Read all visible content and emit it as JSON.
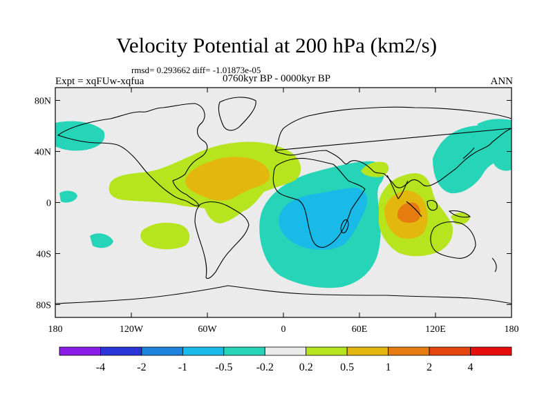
{
  "title": "Velocity Potential at 200 hPa (km2/s)",
  "stats": "rmsd= 0.293662 diff= -1.01873e-05",
  "left_label": "Expt = xqFUw-xqfua",
  "center_label": "0760kyr BP - 0000kyr BP",
  "right_label": "ANN",
  "map": {
    "projection": "cylindrical-equidistant",
    "lon_range": [
      -180,
      180
    ],
    "lat_range": [
      -90,
      90
    ],
    "lat_ticks": [
      "80N",
      "40N",
      "0",
      "40S",
      "80S"
    ],
    "lon_ticks": [
      "180",
      "120W",
      "60W",
      "0",
      "60E",
      "120E",
      "180"
    ],
    "background_color": "#ebebeb"
  },
  "colorbar": {
    "labels": [
      "-4",
      "-2",
      "-1",
      "-0.5",
      "-0.2",
      "0.2",
      "0.5",
      "1",
      "2",
      "4"
    ],
    "colors": [
      "#8a1ee6",
      "#2b35d8",
      "#1c84dc",
      "#19b9e8",
      "#26d4b8",
      "#ebebeb",
      "#b6e51f",
      "#e3b70e",
      "#e67b10",
      "#e6440f",
      "#e60d0d"
    ]
  },
  "field_colors": {
    "neutral": "#ebebeb",
    "pos_02": "#b6e51f",
    "pos_05": "#e3b70e",
    "pos_1": "#e67b10",
    "neg_02": "#26d4b8",
    "neg_05": "#19b9e8",
    "land_outline": "#000000"
  }
}
